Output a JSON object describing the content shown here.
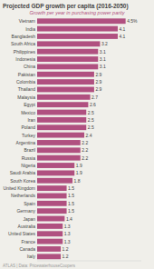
{
  "chart_data": {
    "type": "bar",
    "orientation": "horizontal",
    "title": "Projected GDP growth per capita (2016-2050)",
    "subtitle": "Growth per year in purchasing power parity",
    "source": "ATLAS | Data: PricewaterhouseCoopers",
    "color": "#b05080",
    "categories": [
      "Vietnam",
      "India",
      "Bangladesh",
      "South Africa",
      "Philippines",
      "Indonesia",
      "China",
      "Pakistan",
      "Colombia",
      "Thailand",
      "Malaysia",
      "Egypt",
      "Mexico",
      "Iran",
      "Poland",
      "Turkey",
      "Argentina",
      "Brazil",
      "Russia",
      "Nigeria",
      "Saudi Arabia",
      "South Korea",
      "United Kingdom",
      "Netherlands",
      "Spain",
      "Germany",
      "Japan",
      "Australia",
      "United States",
      "France",
      "Canada",
      "Italy"
    ],
    "values": [
      4.5,
      4.1,
      4.1,
      3.2,
      3.1,
      3.1,
      3.1,
      2.9,
      2.9,
      2.9,
      2.7,
      2.6,
      2.5,
      2.5,
      2.5,
      2.4,
      2.2,
      2.2,
      2.2,
      1.9,
      1.9,
      1.8,
      1.5,
      1.5,
      1.5,
      1.5,
      1.4,
      1.3,
      1.3,
      1.3,
      1.2,
      1.2
    ],
    "value_labels": [
      "4.5%",
      "4.1",
      "4.1",
      "3.2",
      "3.1",
      "3.1",
      "3.1",
      "2.9",
      "2.9",
      "2.9",
      "2.7",
      "2.6",
      "2.5",
      "2.5",
      "2.5",
      "2.4",
      "2.2",
      "2.2",
      "2.2",
      "1.9",
      "1.9",
      "1.8",
      "1.5",
      "1.5",
      "1.5",
      "1.5",
      "1.4",
      "1.3",
      "1.3",
      "1.3",
      "1.2",
      "1.2"
    ],
    "data_labels": true,
    "tick_labels": "y",
    "xlim": [
      0,
      5.3
    ]
  }
}
